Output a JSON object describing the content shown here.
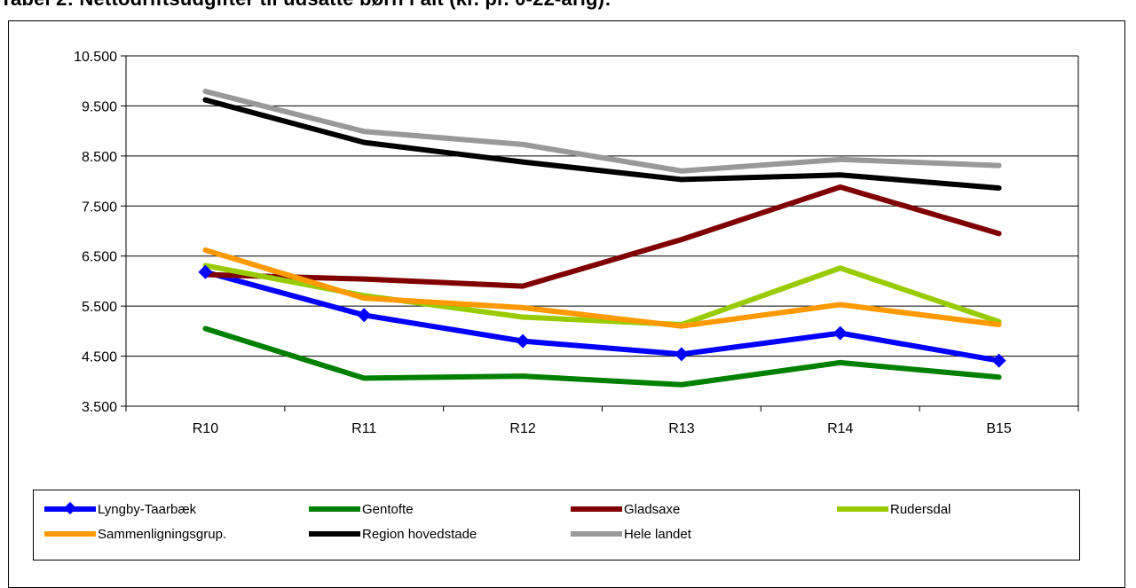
{
  "title": "Tabel 2: Nettodriftsudgifter til udsatte børn i alt (kr. pr. 0-22-årig):",
  "chart_data": {
    "type": "line",
    "categories": [
      "R10",
      "R11",
      "R12",
      "R13",
      "R14",
      "B15"
    ],
    "ylim": [
      3500,
      10500
    ],
    "yticks": [
      "3.500",
      "4.500",
      "5.500",
      "6.500",
      "7.500",
      "8.500",
      "9.500",
      "10.500"
    ],
    "ytick_values": [
      3500,
      4500,
      5500,
      6500,
      7500,
      8500,
      9500,
      10500
    ],
    "legend_position": "bottom",
    "series": [
      {
        "name": "Lyngby-Taarbæk",
        "color": "#0000ff",
        "marker": "diamond",
        "values": [
          6180,
          5320,
          4800,
          4540,
          4960,
          4410
        ]
      },
      {
        "name": "Gentofte",
        "color": "#008000",
        "marker": "none",
        "values": [
          5050,
          4060,
          4100,
          3930,
          4370,
          4080
        ]
      },
      {
        "name": "Gladsaxe",
        "color": "#800000",
        "marker": "none",
        "values": [
          6130,
          6040,
          5900,
          6830,
          7880,
          6950
        ]
      },
      {
        "name": "Rudersdal",
        "color": "#99cc00",
        "marker": "none",
        "values": [
          6310,
          5710,
          5280,
          5130,
          6260,
          5190
        ]
      },
      {
        "name": "Sammenligningsgrup.",
        "color": "#ff9900",
        "marker": "none",
        "values": [
          6620,
          5660,
          5470,
          5100,
          5530,
          5130
        ]
      },
      {
        "name": "Region hovedstade",
        "color": "#000000",
        "marker": "none",
        "values": [
          9620,
          8770,
          8380,
          8030,
          8120,
          7860
        ]
      },
      {
        "name": "Hele landet",
        "color": "#999999",
        "marker": "none",
        "values": [
          9790,
          8990,
          8730,
          8200,
          8430,
          8310
        ]
      }
    ]
  }
}
